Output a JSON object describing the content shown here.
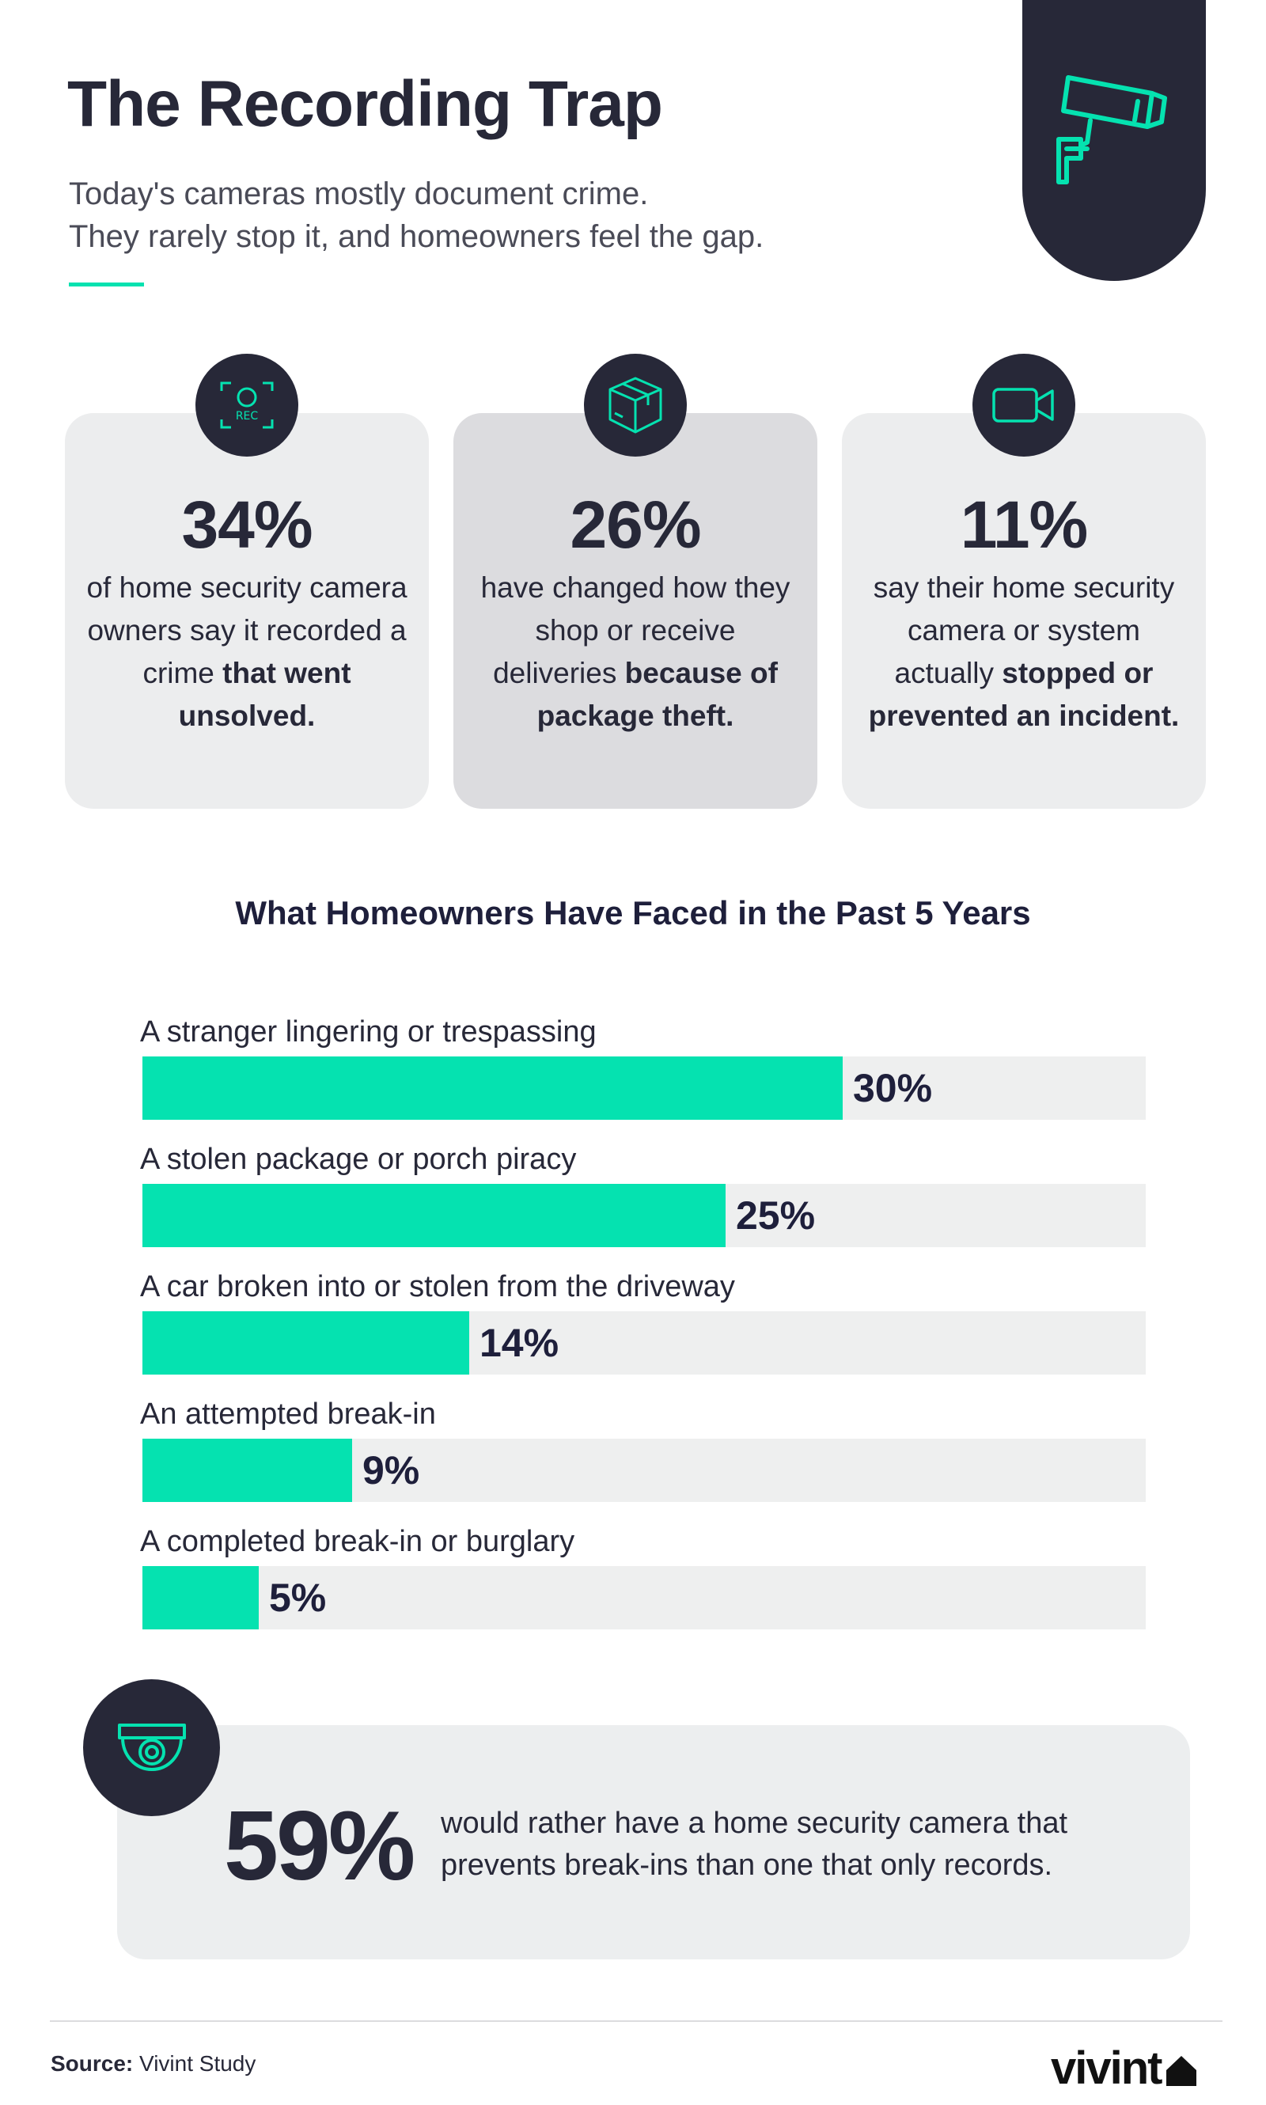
{
  "header": {
    "title": "The Recording Trap",
    "subtitle_line1": "Today's cameras mostly document crime.",
    "subtitle_line2": "They rarely stop it, and homeowners feel the gap."
  },
  "header_icon": "security-camera-icon",
  "stats": [
    {
      "icon": "rec-icon",
      "icon_label": "REC",
      "value": "34%",
      "text_plain": "of home security camera owners say it recorded a crime",
      "text_bold": "that went unsolved."
    },
    {
      "icon": "package-icon",
      "value": "26%",
      "text_plain": "have changed how they shop or receive deliveries",
      "text_bold": "because of package theft."
    },
    {
      "icon": "video-camera-icon",
      "value": "11%",
      "text_plain": "say their home security camera or system actually",
      "text_bold": "stopped or prevented an incident."
    }
  ],
  "chart_data": {
    "type": "bar",
    "orientation": "horizontal",
    "title": "What Homeowners Have Faced in the Past 5 Years",
    "categories": [
      "A stranger lingering or trespassing",
      "A stolen package or porch piracy",
      "A car broken into or stolen from the driveway",
      "An attempted break-in",
      "A completed break-in or burglary"
    ],
    "values": [
      30,
      25,
      14,
      9,
      5
    ],
    "value_labels": [
      "30%",
      "25%",
      "14%",
      "9%",
      "5%"
    ],
    "xlim": [
      0,
      43
    ],
    "unit": "%",
    "colors": {
      "fill": "#05e2b0",
      "track": "#eeefef"
    }
  },
  "callout": {
    "icon": "dome-camera-icon",
    "value": "59%",
    "text_line1": "would rather have a home security camera that",
    "text_line2": "prevents break-ins than one that only records."
  },
  "footer": {
    "source_label": "Source:",
    "source_value": "Vivint Study",
    "logo_text": "vivint",
    "logo_icon": "house-icon"
  },
  "colors": {
    "navy": "#272838",
    "accent": "#05e2b0",
    "card": "#ecedee",
    "card_mid": "#dcdcdf"
  }
}
